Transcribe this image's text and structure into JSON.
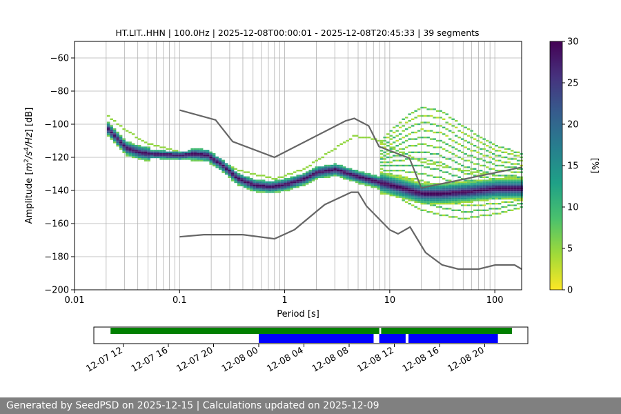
{
  "chart_data": {
    "type": "heatmap",
    "title": "HT.LIT..HHN | 100.0Hz | 2025-12-08T00:00:01 - 2025-12-08T20:45:33 | 39 segments",
    "xlabel": "Period [s]",
    "ylabel": "Amplitude [m²/s⁴/Hz] [dB]",
    "x_scale": "log",
    "xlim": [
      0.01,
      180
    ],
    "ylim": [
      -200,
      -50
    ],
    "x_ticks": [
      {
        "value": 0.01,
        "label": "0.01"
      },
      {
        "value": 0.1,
        "label": "0.1"
      },
      {
        "value": 1,
        "label": "1"
      },
      {
        "value": 10,
        "label": "10"
      },
      {
        "value": 100,
        "label": "100"
      }
    ],
    "y_ticks": [
      -60,
      -80,
      -100,
      -120,
      -140,
      -160,
      -180,
      -200
    ],
    "grid": true,
    "colorbar": {
      "label": "[%]",
      "range": [
        0,
        30
      ],
      "ticks": [
        0,
        5,
        10,
        15,
        20,
        25,
        30
      ],
      "colors": [
        "#fde725",
        "#a0da39",
        "#4ac16d",
        "#1fa187",
        "#277f8e",
        "#365c8d",
        "#46327e",
        "#440154"
      ]
    },
    "noise_model_color": "#666666",
    "high_noise_model": [
      [
        0.1,
        -91.5
      ],
      [
        0.22,
        -97.4
      ],
      [
        0.32,
        -110.5
      ],
      [
        0.8,
        -120
      ],
      [
        3.8,
        -98
      ],
      [
        4.6,
        -96.5
      ],
      [
        6.3,
        -101
      ],
      [
        7.9,
        -113.5
      ],
      [
        15.4,
        -120.5
      ],
      [
        20,
        -138.5
      ],
      [
        354.8,
        -126
      ]
    ],
    "low_noise_model": [
      [
        0.1,
        -168
      ],
      [
        0.17,
        -166.7
      ],
      [
        0.4,
        -166.7
      ],
      [
        0.8,
        -169.2
      ],
      [
        1.24,
        -163.7
      ],
      [
        2.4,
        -148.6
      ],
      [
        4.3,
        -141.1
      ],
      [
        5.0,
        -141.1
      ],
      [
        6.0,
        -149.4
      ],
      [
        10.0,
        -163.8
      ],
      [
        12.0,
        -166.2
      ],
      [
        15.6,
        -162.1
      ],
      [
        21.9,
        -177.5
      ],
      [
        31.6,
        -185
      ],
      [
        45.0,
        -187.5
      ],
      [
        70.0,
        -187.5
      ],
      [
        101.0,
        -185
      ],
      [
        154.0,
        -185
      ],
      [
        328.0,
        -187.5
      ]
    ],
    "psd_mode": [
      [
        0.02,
        -102.5
      ],
      [
        0.025,
        -109
      ],
      [
        0.03,
        -114.5
      ],
      [
        0.04,
        -117
      ],
      [
        0.05,
        -118
      ],
      [
        0.07,
        -118.5
      ],
      [
        0.1,
        -119
      ],
      [
        0.13,
        -118
      ],
      [
        0.18,
        -119
      ],
      [
        0.25,
        -125
      ],
      [
        0.35,
        -133
      ],
      [
        0.5,
        -137
      ],
      [
        0.7,
        -138
      ],
      [
        1.0,
        -136.5
      ],
      [
        1.5,
        -133
      ],
      [
        2.0,
        -129
      ],
      [
        3.0,
        -127.5
      ],
      [
        4.0,
        -130
      ],
      [
        5.0,
        -132
      ],
      [
        7.0,
        -134.5
      ],
      [
        10.0,
        -137
      ],
      [
        15.0,
        -140
      ],
      [
        20.0,
        -142
      ],
      [
        30.0,
        -142
      ],
      [
        50.0,
        -141
      ],
      [
        100.0,
        -139
      ],
      [
        180.0,
        -139
      ]
    ],
    "psd_secondary": [
      [
        0.02,
        -95
      ],
      [
        0.03,
        -104
      ],
      [
        0.05,
        -112
      ],
      [
        0.1,
        -117
      ],
      [
        0.2,
        -122
      ],
      [
        0.4,
        -129
      ],
      [
        0.8,
        -133
      ],
      [
        1.5,
        -127
      ],
      [
        3.0,
        -114
      ],
      [
        4.5,
        -107
      ],
      [
        7.0,
        -109
      ],
      [
        10.0,
        -114
      ],
      [
        20.0,
        -123
      ],
      [
        40.0,
        -127
      ],
      [
        100.0,
        -131
      ],
      [
        180.0,
        -133
      ]
    ],
    "psd_upper": [
      [
        8.0,
        -110
      ],
      [
        10.0,
        -104
      ],
      [
        15.0,
        -94
      ],
      [
        20.0,
        -90
      ],
      [
        30.0,
        -92
      ],
      [
        50.0,
        -102
      ],
      [
        100.0,
        -113
      ],
      [
        180.0,
        -118
      ]
    ],
    "psd_lower": [
      [
        8.0,
        -137
      ],
      [
        10.0,
        -141
      ],
      [
        15.0,
        -148
      ],
      [
        20.0,
        -152
      ],
      [
        30.0,
        -155
      ],
      [
        50.0,
        -157
      ],
      [
        100.0,
        -154
      ],
      [
        180.0,
        -150
      ]
    ]
  },
  "availability": {
    "x_ticks": [
      "12-07 12",
      "12-07 16",
      "12-07 20",
      "12-08 00",
      "12-08 04",
      "12-08 08",
      "12-08 12",
      "12-08 16",
      "12-08 20"
    ],
    "green_color": "#008000",
    "blue_color": "#0000ff",
    "green_segments": [
      [
        "12-07 10:53",
        "12-08 10:40"
      ],
      [
        "12-08 10:50",
        "12-08 22:25"
      ]
    ],
    "blue_segments": [
      [
        "12-08 00:00",
        "12-08 10:10"
      ],
      [
        "12-08 10:40",
        "12-08 13:00"
      ],
      [
        "12-08 13:15",
        "12-08 21:10"
      ]
    ]
  },
  "footer": {
    "text": "Generated by SeedPSD on 2025-12-15 | Calculations updated on 2025-12-09"
  }
}
